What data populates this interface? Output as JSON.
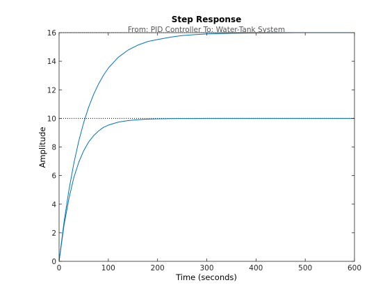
{
  "chart_data": {
    "type": "line",
    "title": "Step Response",
    "subtitle": "From: PID Controller  To: Water-Tank System",
    "xlabel": "Time (seconds)",
    "ylabel": "Amplitude",
    "xlim": [
      0,
      600
    ],
    "ylim": [
      0,
      16
    ],
    "xticks": [
      0,
      100,
      200,
      300,
      400,
      500,
      600
    ],
    "yticks": [
      0,
      2,
      4,
      6,
      8,
      10,
      12,
      14,
      16
    ],
    "grid": false,
    "colors": {
      "line": "#0072BD",
      "reference": "#000000",
      "axes": "#262626"
    },
    "reference_lines": [
      {
        "y": 16,
        "style": "dotted"
      },
      {
        "y": 10,
        "style": "dotted"
      }
    ],
    "series": [
      {
        "final_value": 16,
        "end_time": 480,
        "x": [
          0,
          10,
          20,
          30,
          40,
          50,
          60,
          70,
          80,
          90,
          100,
          120,
          140,
          160,
          180,
          200,
          225,
          250,
          275,
          300,
          350,
          400,
          450,
          480,
          600
        ],
        "y": [
          0,
          2.73,
          4.99,
          6.86,
          8.42,
          9.71,
          10.78,
          11.67,
          12.4,
          13.01,
          13.52,
          14.27,
          14.78,
          15.13,
          15.38,
          15.52,
          15.68,
          15.8,
          15.86,
          15.91,
          15.96,
          15.98,
          15.99,
          16.0,
          16.0
        ]
      },
      {
        "final_value": 10,
        "end_time": 330,
        "x": [
          0,
          10,
          20,
          30,
          40,
          50,
          60,
          70,
          80,
          90,
          100,
          120,
          140,
          160,
          180,
          200,
          225,
          250,
          275,
          300,
          330,
          600
        ],
        "y": [
          0,
          2.52,
          4.39,
          5.87,
          6.93,
          7.74,
          8.35,
          8.79,
          9.12,
          9.37,
          9.53,
          9.74,
          9.85,
          9.91,
          9.95,
          9.97,
          9.98,
          9.99,
          9.99,
          10.0,
          10.0,
          10.0
        ]
      }
    ]
  }
}
